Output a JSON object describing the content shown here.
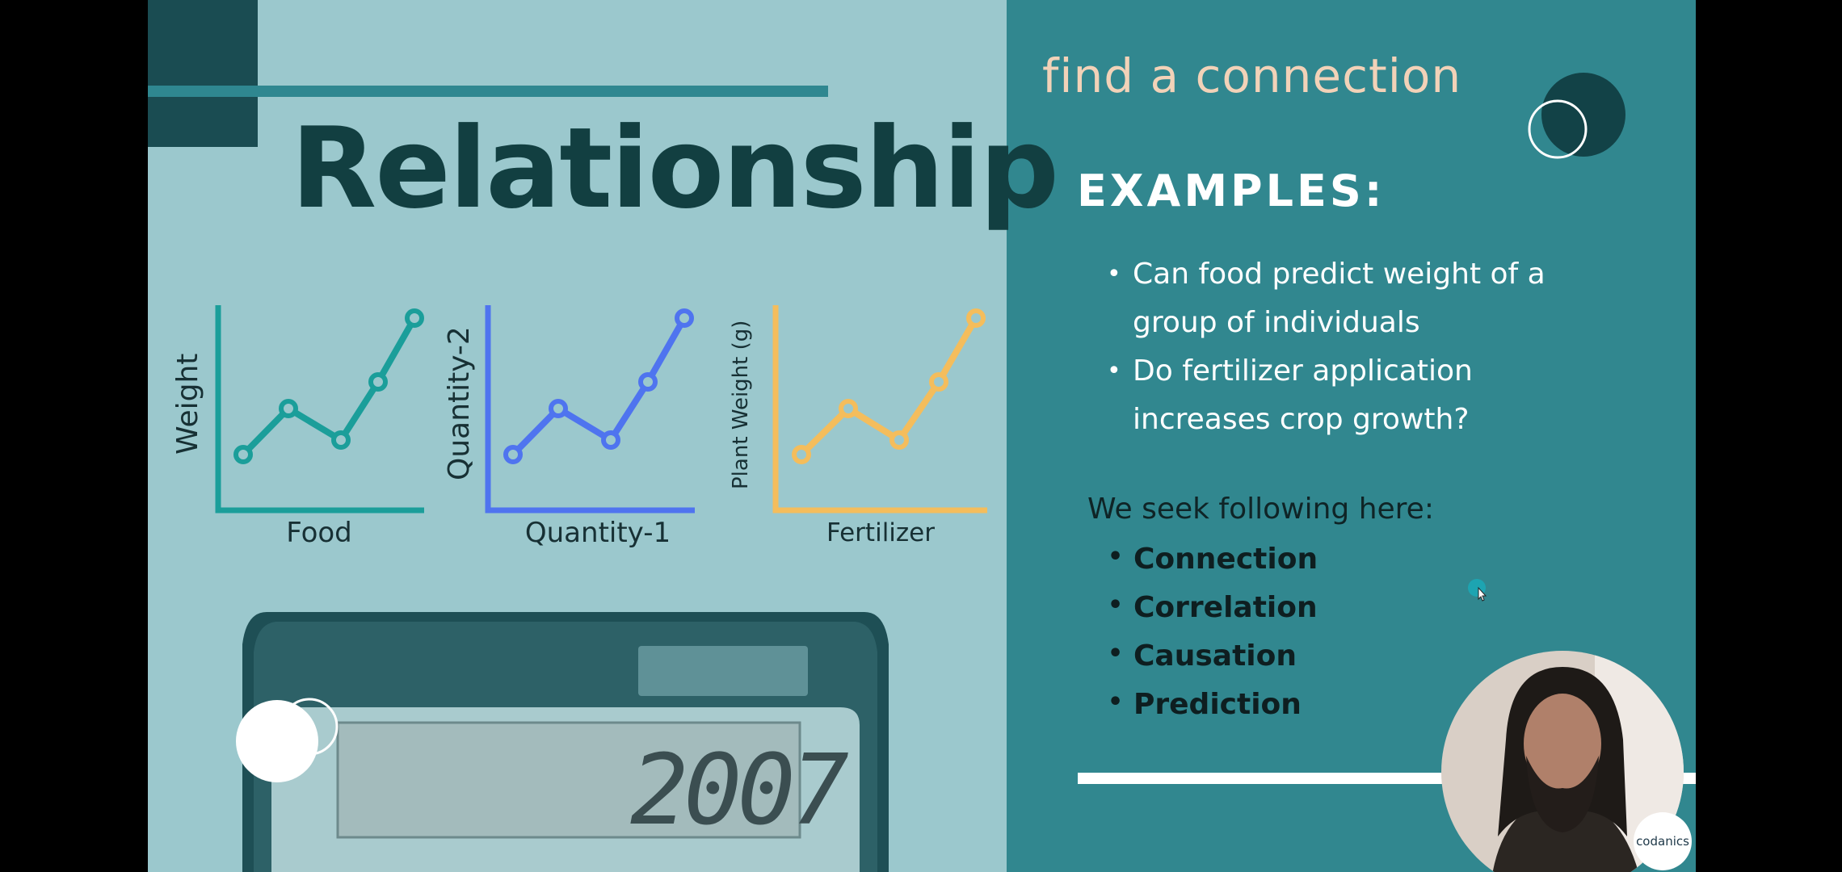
{
  "slide": {
    "title": "Relationship",
    "subtitle": "find a connection",
    "examples_heading": "EXAMPLES:",
    "examples": [
      {
        "line1": "Can food predict weight of a",
        "line2": "group of individuals"
      },
      {
        "line1": "Do fertilizer application",
        "line2": "increases crop growth?"
      }
    ],
    "seek_intro": "We seek following here:",
    "seek_items": [
      "Connection",
      "Correlation",
      "Causation",
      "Prediction"
    ],
    "bullet_glyph": "•",
    "colors": {
      "left_bg": "#9bc8cd",
      "right_bg": "#31878f",
      "title": "#123f41",
      "subtitle": "#f2d2b8",
      "chart_teal": "#1b9e9a",
      "chart_blue": "#4f74ef",
      "chart_orange": "#f4bd5c"
    }
  },
  "mini_charts": [
    {
      "xlabel": "Food",
      "ylabel": "Weight",
      "color": "#1b9e9a"
    },
    {
      "xlabel": "Quantity-1",
      "ylabel": "Quantity-2",
      "color": "#4f74ef"
    },
    {
      "xlabel": "Fertilizer",
      "ylabel": "Plant Weight (g)",
      "color": "#f4bd5c"
    }
  ],
  "calculator": {
    "display_value": "2007"
  },
  "webcam": {
    "logo_text": "codanics"
  }
}
